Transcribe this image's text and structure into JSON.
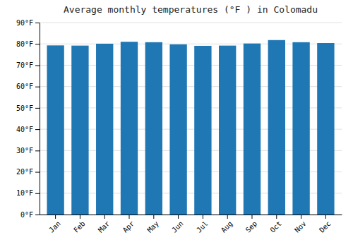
{
  "chart_data": {
    "type": "bar",
    "title": "Average monthly temperatures (°F ) in Colomadu",
    "categories": [
      "Jan",
      "Feb",
      "Mar",
      "Apr",
      "May",
      "Jun",
      "Jul",
      "Aug",
      "Sep",
      "Oct",
      "Nov",
      "Dec"
    ],
    "values": [
      79.3,
      79.2,
      80.1,
      81.0,
      80.8,
      79.8,
      79.1,
      79.2,
      80.2,
      81.8,
      80.8,
      80.4
    ],
    "ylim": [
      0,
      90
    ],
    "yticks": [
      {
        "value": 0,
        "label": "0°F"
      },
      {
        "value": 10,
        "label": "10°F"
      },
      {
        "value": 20,
        "label": "20°F"
      },
      {
        "value": 30,
        "label": "30°F"
      },
      {
        "value": 40,
        "label": "40°F"
      },
      {
        "value": 50,
        "label": "50°F"
      },
      {
        "value": 60,
        "label": "60°F"
      },
      {
        "value": 70,
        "label": "70°F"
      },
      {
        "value": 80,
        "label": "80°F"
      },
      {
        "value": 90,
        "label": "90°F"
      }
    ],
    "grid": true
  }
}
